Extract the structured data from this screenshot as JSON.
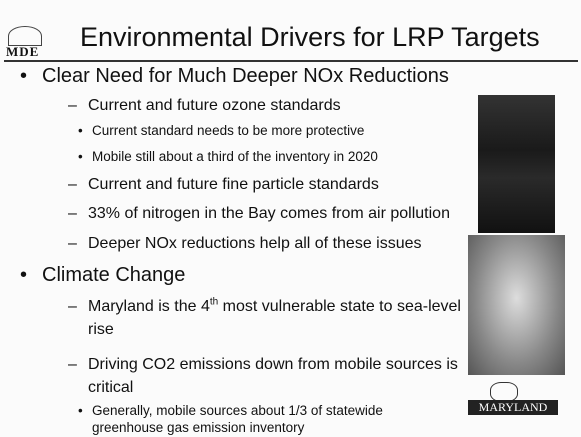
{
  "header": {
    "logo": "MDE",
    "title": "Environmental Drivers for LRP Targets"
  },
  "bullets": [
    {
      "text": "Clear Need for Much Deeper NOx Reductions",
      "items": [
        {
          "text": "Current and future ozone standards",
          "items": [
            "Current standard needs to be more protective",
            "Mobile still about a third of the inventory in 2020"
          ]
        },
        {
          "text": "Current and future fine particle standards"
        },
        {
          "text": "33% of nitrogen in the Bay comes from air pollution"
        },
        {
          "text": "Deeper NOx reductions help all of these issues"
        }
      ]
    },
    {
      "text": "Climate Change",
      "items": [
        {
          "text_parts": [
            "Maryland is the 4",
            "th",
            " most vulnerable state to sea-level rise"
          ]
        },
        {
          "text": "Driving CO2 emissions down from mobile sources is critical",
          "items": [
            "Generally, mobile sources about 1/3 of statewide greenhouse gas emission inventory"
          ]
        }
      ]
    }
  ],
  "footer_logo": "MARYLAND"
}
